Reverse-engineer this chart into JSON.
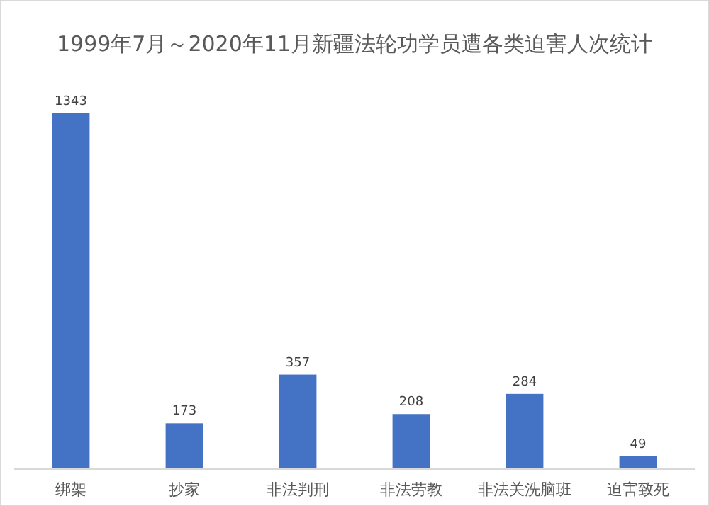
{
  "chart_data": {
    "type": "bar",
    "title": "1999年7月～2020年11月新疆法轮功学员遭各类迫害人次统计",
    "categories": [
      "绑架",
      "抄家",
      "非法判刑",
      "非法劳教",
      "非法关洗脑班",
      "迫害致死"
    ],
    "values": [
      1343,
      173,
      357,
      208,
      284,
      49
    ],
    "color": "#4472c4",
    "data_labels": true
  }
}
